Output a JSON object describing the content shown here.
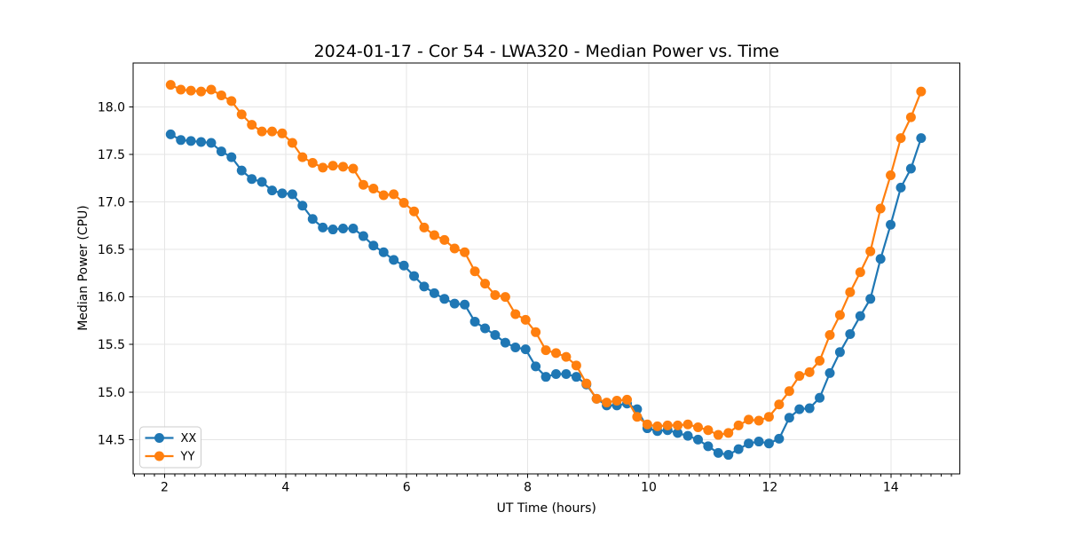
{
  "colors": {
    "background": "#ffffff",
    "axes": "#000000",
    "grid": "#e5e5e5",
    "series_xx": "#1f77b4",
    "series_yy": "#ff7f0e"
  },
  "chart_data": {
    "type": "line",
    "title": "2024-01-17 - Cor 54 - LWA320 - Median Power vs. Time",
    "xlabel": "UT Time (hours)",
    "ylabel": "Median Power (CPU)",
    "xlim": [
      1.48,
      15.14
    ],
    "ylim": [
      14.14,
      18.46
    ],
    "x_ticks": [
      2,
      4,
      6,
      8,
      10,
      12,
      14
    ],
    "y_ticks": [
      14.5,
      15.0,
      15.5,
      16.0,
      16.5,
      17.0,
      17.5,
      18.0
    ],
    "x_minor_step": 0.16667,
    "grid": true,
    "marker": "o",
    "legend_position": "lower left",
    "x": [
      2.1,
      2.268,
      2.435,
      2.603,
      2.77,
      2.938,
      3.105,
      3.273,
      3.441,
      3.608,
      3.776,
      3.943,
      4.111,
      4.278,
      4.446,
      4.614,
      4.781,
      4.949,
      5.116,
      5.284,
      5.451,
      5.619,
      5.786,
      5.954,
      6.122,
      6.289,
      6.457,
      6.624,
      6.792,
      6.959,
      7.127,
      7.295,
      7.462,
      7.63,
      7.797,
      7.965,
      8.132,
      8.3,
      8.468,
      8.635,
      8.803,
      8.97,
      9.138,
      9.305,
      9.473,
      9.641,
      9.808,
      9.976,
      10.143,
      10.311,
      10.478,
      10.646,
      10.814,
      10.981,
      11.149,
      11.316,
      11.484,
      11.651,
      11.819,
      11.986,
      12.154,
      12.322,
      12.489,
      12.657,
      12.824,
      12.992,
      13.159,
      13.327,
      13.495,
      13.662,
      13.83,
      13.997,
      14.165,
      14.332,
      14.5
    ],
    "series": [
      {
        "name": "XX",
        "color": "#1f77b4",
        "values": [
          17.71,
          17.65,
          17.64,
          17.63,
          17.62,
          17.53,
          17.47,
          17.33,
          17.24,
          17.21,
          17.12,
          17.09,
          17.08,
          16.96,
          16.82,
          16.73,
          16.71,
          16.72,
          16.72,
          16.64,
          16.54,
          16.47,
          16.39,
          16.33,
          16.22,
          16.11,
          16.04,
          15.98,
          15.93,
          15.92,
          15.74,
          15.67,
          15.6,
          15.52,
          15.47,
          15.45,
          15.27,
          15.16,
          15.19,
          15.19,
          15.16,
          15.08,
          14.93,
          14.86,
          14.86,
          14.88,
          14.82,
          14.62,
          14.59,
          14.6,
          14.57,
          14.54,
          14.5,
          14.43,
          14.36,
          14.34,
          14.4,
          14.46,
          14.48,
          14.46,
          14.51,
          14.73,
          14.82,
          14.83,
          14.94,
          15.2,
          15.42,
          15.61,
          15.8,
          15.98,
          16.4,
          16.76,
          17.15,
          17.35,
          17.67
        ]
      },
      {
        "name": "YY",
        "color": "#ff7f0e",
        "values": [
          18.23,
          18.18,
          18.17,
          18.16,
          18.18,
          18.12,
          18.06,
          17.92,
          17.81,
          17.74,
          17.74,
          17.72,
          17.62,
          17.47,
          17.41,
          17.36,
          17.38,
          17.37,
          17.35,
          17.18,
          17.14,
          17.07,
          17.08,
          16.99,
          16.9,
          16.73,
          16.65,
          16.6,
          16.51,
          16.47,
          16.27,
          16.14,
          16.02,
          16.0,
          15.82,
          15.76,
          15.63,
          15.44,
          15.41,
          15.37,
          15.28,
          15.09,
          14.93,
          14.89,
          14.91,
          14.92,
          14.74,
          14.66,
          14.64,
          14.65,
          14.65,
          14.66,
          14.63,
          14.6,
          14.55,
          14.57,
          14.65,
          14.71,
          14.7,
          14.74,
          14.87,
          15.01,
          15.17,
          15.21,
          15.33,
          15.6,
          15.81,
          16.05,
          16.26,
          16.48,
          16.93,
          17.28,
          17.67,
          17.89,
          18.16
        ]
      }
    ]
  }
}
